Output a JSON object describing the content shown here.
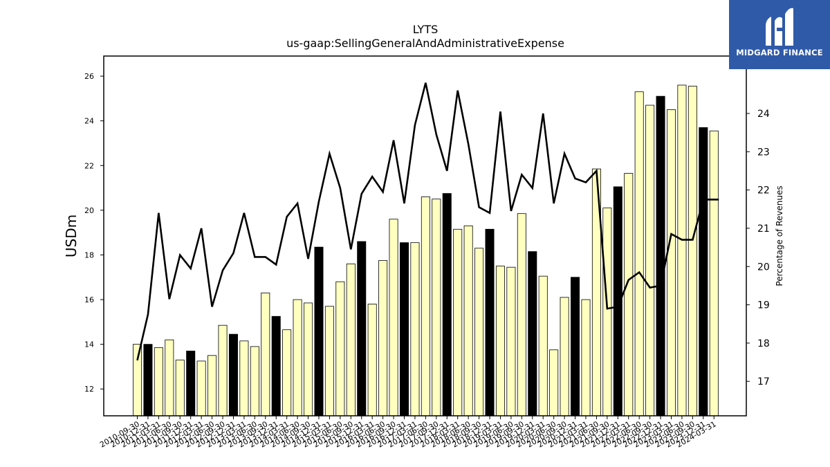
{
  "logo": {
    "text": "MIDGARD FINANCE"
  },
  "chart_data": {
    "type": "bar",
    "title": "LYTS",
    "subtitle": "us-gaap:SellingGeneralAndAdministrativeExpense",
    "ylabel": "USDm",
    "y2label": "Percentage of Revenues",
    "ylim": [
      10.8,
      26.9
    ],
    "y2lim": [
      16.1,
      25.5
    ],
    "yticks": [
      12,
      14,
      16,
      18,
      20,
      22,
      24,
      26
    ],
    "y2ticks": [
      17,
      18,
      19,
      20,
      21,
      22,
      23,
      24
    ],
    "colors": {
      "bar": "#ffffc0",
      "bar_q4": "#000000",
      "line": "#000000"
    },
    "categories": [
      "2010-09-30",
      "2010-12-31",
      "2011-03-31",
      "2011-06-30",
      "2011-09-30",
      "2011-12-31",
      "2012-03-31",
      "2012-06-30",
      "2012-09-30",
      "2012-12-31",
      "2013-03-31",
      "2013-06-30",
      "2013-09-30",
      "2013-12-31",
      "2014-03-31",
      "2014-06-30",
      "2014-09-30",
      "2014-12-31",
      "2015-03-31",
      "2015-06-30",
      "2015-09-30",
      "2015-12-31",
      "2016-03-31",
      "2016-06-30",
      "2016-09-30",
      "2016-12-31",
      "2017-03-31",
      "2017-06-30",
      "2017-09-30",
      "2017-12-31",
      "2018-03-31",
      "2018-06-30",
      "2018-09-30",
      "2018-12-31",
      "2019-03-31",
      "2019-06-30",
      "2019-09-30",
      "2019-12-31",
      "2020-03-31",
      "2020-06-30",
      "2020-09-30",
      "2020-12-31",
      "2021-03-31",
      "2021-06-30",
      "2021-09-30",
      "2021-12-31",
      "2022-03-31",
      "2022-06-30",
      "2022-09-30",
      "2022-12-31",
      "2023-03-31",
      "2023-06-30",
      "2023-09-30",
      "2023-12-31",
      "2024-03-31"
    ],
    "series": [
      {
        "values": [
          14.0,
          14.0,
          13.85,
          14.2,
          13.3,
          13.7,
          13.25,
          13.5,
          14.85,
          14.45,
          14.15,
          13.9,
          16.3,
          15.25,
          14.65,
          16.0,
          15.85,
          18.35,
          15.7,
          16.8,
          17.6,
          18.6,
          15.8,
          17.75,
          19.6,
          18.55,
          18.55,
          20.6,
          20.5,
          20.75,
          19.15,
          19.3,
          18.3,
          19.15,
          17.5,
          17.45,
          19.85,
          18.15,
          17.05,
          13.75,
          16.1,
          17.0,
          16.0,
          21.85,
          20.1,
          21.05,
          21.65,
          25.3,
          24.7,
          25.1,
          24.5,
          25.6,
          25.55,
          23.7,
          23.55
        ]
      },
      {
        "values": [
          17.55,
          18.75,
          21.4,
          19.15,
          20.3,
          19.95,
          21.0,
          18.95,
          19.9,
          20.35,
          21.4,
          20.25,
          20.25,
          20.05,
          21.3,
          21.65,
          20.2,
          21.7,
          22.95,
          22.05,
          20.45,
          21.9,
          22.35,
          21.95,
          23.3,
          21.65,
          23.7,
          24.8,
          23.45,
          22.5,
          24.6,
          23.2,
          21.55,
          21.4,
          24.05,
          21.45,
          22.4,
          22.05,
          24.0,
          21.65,
          22.95,
          22.3,
          22.2,
          22.5,
          18.9,
          18.95,
          19.65,
          19.85,
          19.45,
          19.5,
          20.85,
          20.7,
          20.7,
          21.75,
          21.75
        ]
      }
    ]
  }
}
